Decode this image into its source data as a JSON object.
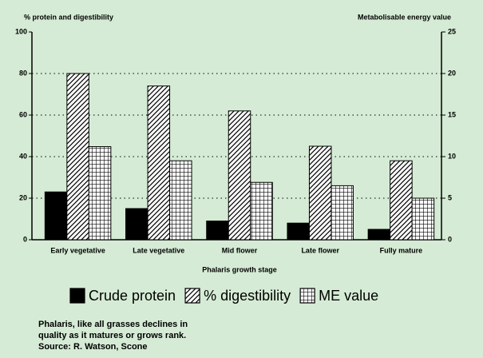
{
  "chart_data": {
    "type": "bar",
    "ylabel": "% protein and digestibility",
    "y2label": "Metabolisable energy value",
    "xlabel": "Phalaris growth stage",
    "categories": [
      "Early vegetative",
      "Late vegetative",
      "Mid flower",
      "Late flower",
      "Fully mature"
    ],
    "series": [
      {
        "name": "Crude protein",
        "color": "#000000",
        "pattern": "solid",
        "values": [
          23,
          15,
          9,
          8,
          5
        ]
      },
      {
        "name": "% digestibility",
        "color": "#000000",
        "pattern": "diagonal",
        "values": [
          80,
          74,
          62,
          45,
          38
        ]
      },
      {
        "name": "ME value",
        "color": "#000000",
        "pattern": "grid",
        "axis": "y2",
        "values": [
          11.2,
          9.5,
          6.9,
          6.5,
          5
        ]
      }
    ],
    "ylim": [
      0,
      100
    ],
    "yticks": [
      0,
      20,
      40,
      60,
      80,
      100
    ],
    "y2lim": [
      0,
      25
    ],
    "y2ticks": [
      0,
      5,
      10,
      15,
      20,
      25
    ],
    "grid": true,
    "notes": [
      "Phalaris, like all grasses declines in",
      "quality as it matures or grows rank.",
      "Source: R. Watson, Scone"
    ]
  }
}
